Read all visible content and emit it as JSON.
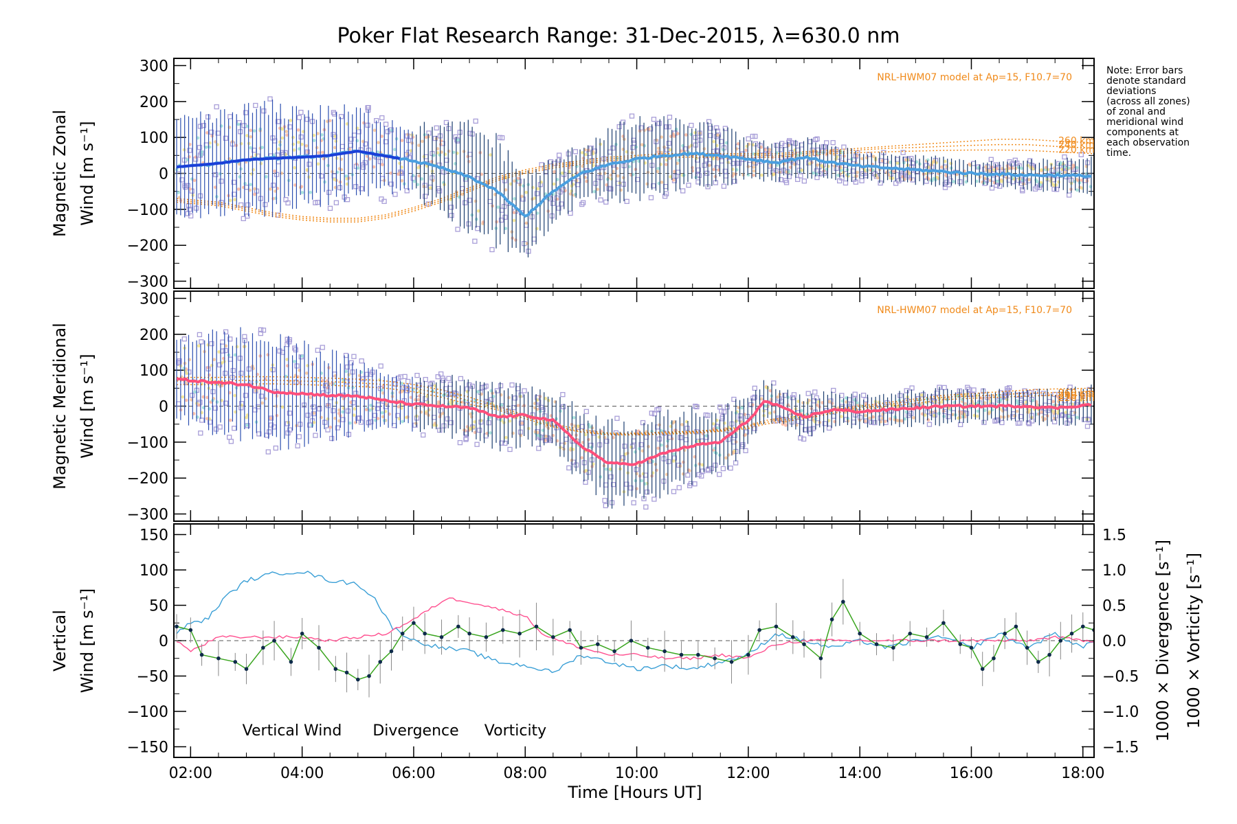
{
  "title": "Poker Flat Research Range: 31-Dec-2015, λ=630.0 nm",
  "note_lines": [
    "Note: Error bars",
    "denote standard",
    "deviations",
    "(across all zones)",
    "of zonal and",
    "meridional wind",
    "components at",
    "each observation",
    "time."
  ],
  "model_label": "NRL-HWM07 model at Ap=15, F10.7=70",
  "altitude_labels": [
    "260 km",
    "240 km",
    "220 km"
  ],
  "x_ticks": [
    "02:00",
    "04:00",
    "06:00",
    "08:00",
    "10:00",
    "12:00",
    "14:00",
    "16:00",
    "18:00"
  ],
  "x_label": "Time [Hours UT]",
  "colors": {
    "zonal": "#4a9fe0",
    "zonal_start": "#1a3fd8",
    "meridional": "#ff4f7b",
    "vertical": "#3aa51f",
    "divergence": "#3a9fd6",
    "vorticity": "#ff4f8f",
    "model": "#f08a1a",
    "scatter": "#a89ed8",
    "errorbar": "#1b3d6f"
  },
  "chart_data": [
    {
      "type": "line",
      "name": "zonal",
      "ylabel": [
        "Magnetic Zonal",
        "Wind [m s⁻¹]"
      ],
      "ylim": [
        -320,
        320
      ],
      "yticks": [
        300,
        200,
        100,
        0,
        -100,
        -200,
        -300
      ],
      "xlim": [
        1.7,
        18.2
      ],
      "x": [
        1.75,
        2.5,
        3.0,
        3.5,
        4.0,
        4.5,
        5.0,
        5.5,
        6.0,
        6.5,
        7.0,
        7.5,
        8.0,
        8.5,
        9.0,
        9.5,
        10.0,
        10.5,
        11.0,
        11.5,
        12.0,
        12.5,
        13.0,
        13.5,
        14.0,
        14.5,
        15.0,
        15.5,
        16.0,
        16.5,
        17.0,
        17.5,
        18.2
      ],
      "values": [
        18,
        28,
        38,
        42,
        45,
        50,
        62,
        48,
        35,
        15,
        -10,
        -50,
        -120,
        -50,
        0,
        25,
        40,
        50,
        55,
        50,
        40,
        30,
        45,
        30,
        20,
        15,
        10,
        5,
        0,
        -2,
        -5,
        -5,
        -8
      ],
      "std": [
        130,
        140,
        150,
        150,
        140,
        130,
        120,
        110,
        100,
        120,
        150,
        150,
        120,
        90,
        80,
        100,
        110,
        100,
        90,
        80,
        60,
        50,
        60,
        50,
        40,
        40,
        40,
        40,
        35,
        35,
        40,
        45,
        60
      ],
      "model": {
        "260 km": [
          -70,
          -80,
          -95,
          -110,
          -120,
          -125,
          -125,
          -115,
          -95,
          -70,
          -40,
          -10,
          10,
          25,
          35,
          45,
          50,
          55,
          55,
          55,
          55,
          55,
          60,
          65,
          70,
          75,
          80,
          85,
          90,
          95,
          95,
          90,
          85
        ],
        "240 km": [
          -75,
          -85,
          -100,
          -115,
          -125,
          -130,
          -130,
          -120,
          -100,
          -75,
          -45,
          -15,
          5,
          20,
          30,
          40,
          45,
          50,
          50,
          50,
          50,
          50,
          55,
          60,
          65,
          70,
          72,
          75,
          78,
          80,
          80,
          75,
          70
        ],
        "220 km": [
          -80,
          -90,
          -105,
          -120,
          -130,
          -135,
          -135,
          -125,
          -105,
          -80,
          -50,
          -20,
          0,
          15,
          25,
          35,
          40,
          45,
          45,
          45,
          45,
          45,
          50,
          55,
          58,
          60,
          62,
          64,
          65,
          65,
          64,
          60,
          55
        ]
      }
    },
    {
      "type": "line",
      "name": "meridional",
      "ylabel": [
        "Magnetic Meridional",
        "Wind [m s⁻¹]"
      ],
      "ylim": [
        -320,
        320
      ],
      "yticks": [
        300,
        200,
        100,
        0,
        -100,
        -200,
        -300
      ],
      "xlim": [
        1.7,
        18.2
      ],
      "x": [
        1.75,
        2.5,
        3.0,
        3.5,
        4.0,
        4.5,
        5.0,
        5.5,
        6.0,
        6.5,
        7.0,
        7.5,
        8.0,
        8.5,
        9.0,
        9.5,
        10.0,
        10.5,
        11.0,
        11.5,
        12.0,
        12.3,
        13.0,
        13.5,
        14.0,
        14.5,
        15.0,
        15.5,
        16.0,
        16.5,
        17.0,
        17.5,
        18.2
      ],
      "values": [
        75,
        65,
        60,
        40,
        35,
        30,
        28,
        15,
        5,
        0,
        -5,
        -30,
        -25,
        -40,
        -110,
        -160,
        -160,
        -130,
        -110,
        -100,
        -40,
        15,
        -30,
        -10,
        -15,
        -10,
        -5,
        0,
        0,
        0,
        0,
        -5,
        5
      ],
      "std": [
        130,
        140,
        150,
        150,
        140,
        120,
        100,
        80,
        70,
        80,
        90,
        90,
        80,
        80,
        100,
        120,
        120,
        110,
        100,
        90,
        70,
        60,
        60,
        50,
        45,
        45,
        50,
        50,
        45,
        45,
        45,
        50,
        60
      ],
      "model": {
        "260 km": [
          80,
          80,
          82,
          82,
          80,
          78,
          75,
          70,
          60,
          45,
          25,
          0,
          -25,
          -50,
          -65,
          -75,
          -75,
          -72,
          -70,
          -65,
          -55,
          -40,
          -25,
          -10,
          0,
          10,
          20,
          30,
          35,
          40,
          45,
          48,
          50
        ],
        "240 km": [
          70,
          70,
          72,
          72,
          70,
          68,
          65,
          60,
          50,
          35,
          15,
          -5,
          -30,
          -55,
          -70,
          -78,
          -78,
          -75,
          -72,
          -68,
          -58,
          -45,
          -30,
          -15,
          -5,
          5,
          15,
          25,
          28,
          32,
          36,
          38,
          40
        ],
        "220 km": [
          60,
          60,
          62,
          62,
          60,
          58,
          55,
          50,
          40,
          25,
          5,
          -10,
          -35,
          -58,
          -72,
          -80,
          -80,
          -78,
          -75,
          -70,
          -62,
          -50,
          -35,
          -20,
          -10,
          0,
          8,
          18,
          22,
          25,
          28,
          30,
          30
        ]
      }
    },
    {
      "type": "line",
      "name": "vertical",
      "ylabel": [
        "Vertical",
        "Wind [m s⁻¹]"
      ],
      "y2label": [
        "1000 × Divergence [s⁻¹]",
        "1000 × Vorticity [s⁻¹]"
      ],
      "ylim": [
        -165,
        165
      ],
      "yticks": [
        150,
        100,
        50,
        0,
        -50,
        -100,
        -150
      ],
      "y2lim": [
        -1.65,
        1.65
      ],
      "y2ticks": [
        "1.5",
        "1.0",
        "0.5",
        "0.0",
        "-0.5",
        "-1.0",
        "-1.5"
      ],
      "xlim": [
        1.7,
        18.2
      ],
      "legend": [
        "Vertical Wind",
        "Divergence",
        "Vorticity"
      ],
      "series": [
        {
          "name": "Vertical Wind",
          "x": [
            1.75,
            2.0,
            2.2,
            2.5,
            2.8,
            3.0,
            3.3,
            3.5,
            3.8,
            4.0,
            4.3,
            4.6,
            4.8,
            5.0,
            5.2,
            5.4,
            5.6,
            5.8,
            6.0,
            6.2,
            6.5,
            6.8,
            7.0,
            7.3,
            7.6,
            7.9,
            8.2,
            8.5,
            8.8,
            9.0,
            9.3,
            9.6,
            9.9,
            10.2,
            10.5,
            10.8,
            11.1,
            11.4,
            11.7,
            12.0,
            12.2,
            12.5,
            12.8,
            13.0,
            13.3,
            13.5,
            13.7,
            14.0,
            14.3,
            14.6,
            14.9,
            15.2,
            15.5,
            15.8,
            16.0,
            16.2,
            16.4,
            16.6,
            16.8,
            17.0,
            17.2,
            17.4,
            17.6,
            17.8,
            18.0,
            18.2
          ],
          "values": [
            20,
            15,
            -20,
            -25,
            -30,
            -40,
            -10,
            0,
            -30,
            10,
            -10,
            -40,
            -45,
            -55,
            -50,
            -30,
            -15,
            10,
            25,
            10,
            5,
            20,
            10,
            5,
            15,
            10,
            20,
            5,
            15,
            -10,
            -5,
            -15,
            0,
            -10,
            -15,
            -20,
            -20,
            -25,
            -30,
            -20,
            15,
            20,
            5,
            -5,
            -25,
            30,
            55,
            10,
            -5,
            -10,
            10,
            5,
            25,
            -5,
            -10,
            -40,
            -25,
            10,
            20,
            -10,
            -30,
            -20,
            0,
            10,
            20,
            15
          ]
        },
        {
          "name": "Divergence",
          "x": [
            1.75,
            2.0,
            2.3,
            2.6,
            3.0,
            3.5,
            4.0,
            4.5,
            5.0,
            5.3,
            5.6,
            6.0,
            6.5,
            7.0,
            7.5,
            8.0,
            8.5,
            9.0,
            9.5,
            10.0,
            10.5,
            11.0,
            11.5,
            12.0,
            12.5,
            13.0,
            13.5,
            14.0,
            14.5,
            15.0,
            15.5,
            16.0,
            16.5,
            17.0,
            17.5,
            18.0,
            18.2
          ],
          "values": [
            0.1,
            0.25,
            0.3,
            0.6,
            0.85,
            0.95,
            0.98,
            0.85,
            0.8,
            0.6,
            0.2,
            0.0,
            -0.1,
            -0.15,
            -0.3,
            -0.35,
            -0.45,
            -0.2,
            -0.3,
            -0.4,
            -0.35,
            -0.4,
            -0.3,
            -0.2,
            0.1,
            0.0,
            -0.1,
            0.0,
            -0.1,
            0.0,
            0.05,
            -0.1,
            0.1,
            -0.1,
            0.1,
            -0.1,
            0.0
          ]
        },
        {
          "name": "Vorticity",
          "x": [
            1.75,
            2.0,
            2.5,
            3.0,
            3.5,
            4.0,
            4.5,
            5.0,
            5.5,
            6.0,
            6.3,
            6.6,
            7.0,
            7.5,
            8.0,
            8.3,
            8.6,
            9.0,
            9.5,
            10.0,
            10.5,
            11.0,
            11.5,
            12.0,
            12.5,
            13.0,
            13.5,
            14.0,
            14.5,
            15.0,
            15.5,
            16.0,
            16.5,
            17.0,
            17.5,
            18.0,
            18.2
          ],
          "values": [
            0.0,
            -0.15,
            0.05,
            0.05,
            0.05,
            0.05,
            0.0,
            0.05,
            0.1,
            0.3,
            0.45,
            0.6,
            0.55,
            0.45,
            0.35,
            0.1,
            0.0,
            -0.1,
            -0.2,
            -0.2,
            -0.25,
            -0.25,
            -0.2,
            -0.25,
            -0.05,
            0.0,
            0.0,
            0.0,
            0.0,
            0.0,
            0.0,
            0.0,
            0.0,
            0.0,
            0.05,
            0.0,
            0.0
          ]
        }
      ]
    }
  ]
}
